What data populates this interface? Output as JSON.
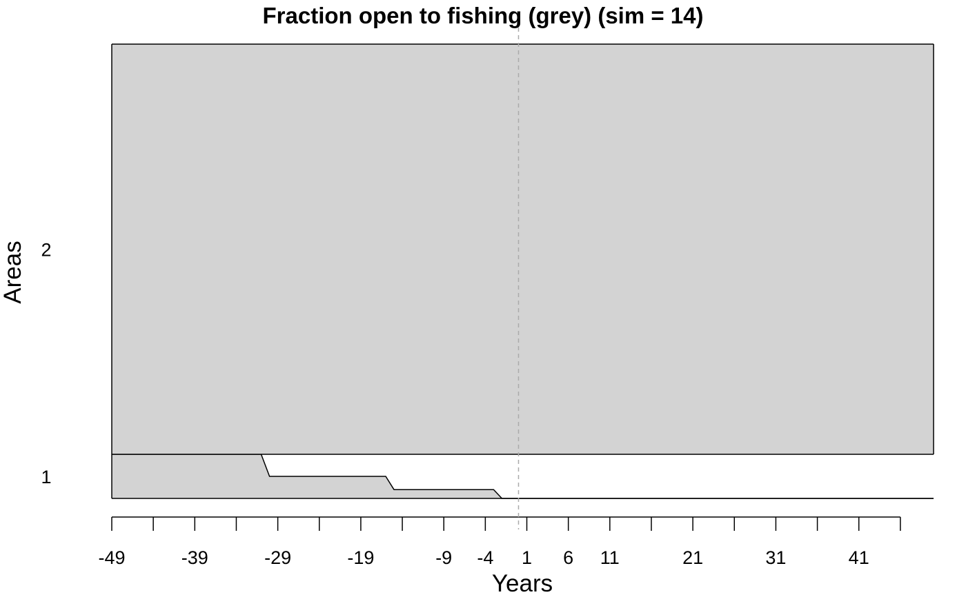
{
  "chart_data": {
    "type": "area",
    "title": "Fraction open to fishing (grey) (sim = 14)",
    "xlabel": "Years",
    "ylabel": "Areas",
    "area_labels": [
      "1",
      "2"
    ],
    "x_tick_labels": [
      "-49",
      "-39",
      "-29",
      "-19",
      "-9",
      "-4",
      "1",
      "6",
      "11",
      "21",
      "31",
      "41"
    ],
    "x_tick_values": [
      -49,
      -39,
      -29,
      -19,
      -9,
      -4,
      1,
      6,
      11,
      21,
      31,
      41
    ],
    "x_minor_tick_values": [
      -44,
      -34,
      -24,
      -14,
      16,
      26,
      36,
      46
    ],
    "xlim": [
      -49,
      50
    ],
    "reference_line_x": 0,
    "fill_color": "#d3d3d3",
    "series": [
      {
        "name": "1",
        "x": [
          -49,
          -31,
          -30,
          -16,
          -15,
          -3,
          -2,
          50
        ],
        "values": [
          1.0,
          1.0,
          0.5,
          0.5,
          0.2,
          0.2,
          0.0,
          0.0
        ]
      },
      {
        "name": "2",
        "x": [
          -49,
          50
        ],
        "values": [
          1.0,
          1.0
        ]
      }
    ]
  }
}
